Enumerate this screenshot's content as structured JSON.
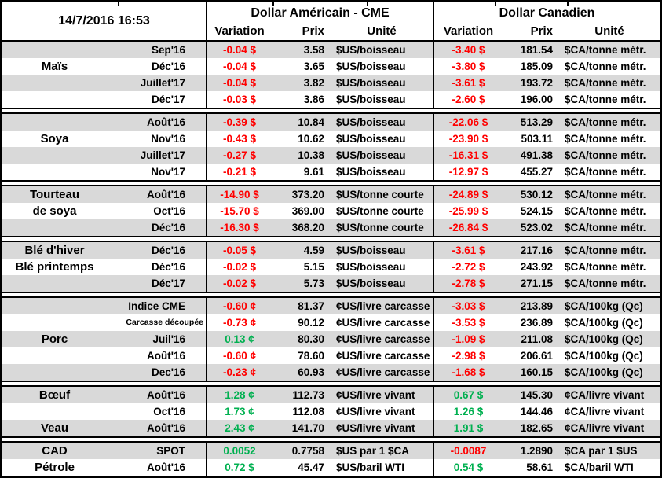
{
  "header": {
    "timestamp": "14/7/2016 16:53",
    "group_us": "Dollar Américain - CME",
    "group_ca": "Dollar Canadien",
    "columns": {
      "variation": "Variation",
      "prix": "Prix",
      "unite": "Unité"
    }
  },
  "colors": {
    "neg": "#FF0000",
    "pos": "#00B050",
    "row_stripe": "#D9D9D9"
  },
  "sections": [
    {
      "id": "mais",
      "rows": [
        {
          "name": "",
          "month": "Sep'16",
          "var_us": "-0.04 $",
          "dir_us": "neg",
          "prix_us": "3.58",
          "unit_us": "$US/boisseau",
          "var_ca": "-3.40 $",
          "dir_ca": "neg",
          "prix_ca": "181.54",
          "unit_ca": "$CA/tonne métr."
        },
        {
          "name": "Maïs",
          "month": "Déc'16",
          "var_us": "-0.04 $",
          "dir_us": "neg",
          "prix_us": "3.65",
          "unit_us": "$US/boisseau",
          "var_ca": "-3.80 $",
          "dir_ca": "neg",
          "prix_ca": "185.09",
          "unit_ca": "$CA/tonne métr."
        },
        {
          "name": "",
          "month": "Juillet'17",
          "var_us": "-0.04 $",
          "dir_us": "neg",
          "prix_us": "3.82",
          "unit_us": "$US/boisseau",
          "var_ca": "-3.61 $",
          "dir_ca": "neg",
          "prix_ca": "193.72",
          "unit_ca": "$CA/tonne métr."
        },
        {
          "name": "",
          "month": "Déc'17",
          "var_us": "-0.03 $",
          "dir_us": "neg",
          "prix_us": "3.86",
          "unit_us": "$US/boisseau",
          "var_ca": "-2.60 $",
          "dir_ca": "neg",
          "prix_ca": "196.00",
          "unit_ca": "$CA/tonne métr."
        }
      ]
    },
    {
      "id": "soya",
      "rows": [
        {
          "name": "",
          "month": "Août'16",
          "var_us": "-0.39 $",
          "dir_us": "neg",
          "prix_us": "10.84",
          "unit_us": "$US/boisseau",
          "var_ca": "-22.06 $",
          "dir_ca": "neg",
          "prix_ca": "513.29",
          "unit_ca": "$CA/tonne métr."
        },
        {
          "name": "Soya",
          "month": "Nov'16",
          "var_us": "-0.43 $",
          "dir_us": "neg",
          "prix_us": "10.62",
          "unit_us": "$US/boisseau",
          "var_ca": "-23.90 $",
          "dir_ca": "neg",
          "prix_ca": "503.11",
          "unit_ca": "$CA/tonne métr."
        },
        {
          "name": "",
          "month": "Juillet'17",
          "var_us": "-0.27 $",
          "dir_us": "neg",
          "prix_us": "10.38",
          "unit_us": "$US/boisseau",
          "var_ca": "-16.31 $",
          "dir_ca": "neg",
          "prix_ca": "491.38",
          "unit_ca": "$CA/tonne métr."
        },
        {
          "name": "",
          "month": "Nov'17",
          "var_us": "-0.21 $",
          "dir_us": "neg",
          "prix_us": "9.61",
          "unit_us": "$US/boisseau",
          "var_ca": "-12.97 $",
          "dir_ca": "neg",
          "prix_ca": "455.27",
          "unit_ca": "$CA/tonne métr."
        }
      ]
    },
    {
      "id": "tourteau-de-soya",
      "rows": [
        {
          "name": "Tourteau",
          "month": "Août'16",
          "var_us": "-14.90 $",
          "dir_us": "neg",
          "prix_us": "373.20",
          "unit_us": "$US/tonne courte",
          "var_ca": "-24.89 $",
          "dir_ca": "neg",
          "prix_ca": "530.12",
          "unit_ca": "$CA/tonne métr."
        },
        {
          "name": "de soya",
          "month": "Oct'16",
          "var_us": "-15.70 $",
          "dir_us": "neg",
          "prix_us": "369.00",
          "unit_us": "$US/tonne courte",
          "var_ca": "-25.99 $",
          "dir_ca": "neg",
          "prix_ca": "524.15",
          "unit_ca": "$CA/tonne métr."
        },
        {
          "name": "",
          "month": "Déc'16",
          "var_us": "-16.30 $",
          "dir_us": "neg",
          "prix_us": "368.20",
          "unit_us": "$US/tonne courte",
          "var_ca": "-26.84 $",
          "dir_ca": "neg",
          "prix_ca": "523.02",
          "unit_ca": "$CA/tonne métr."
        }
      ]
    },
    {
      "id": "ble",
      "rows": [
        {
          "name": "Blé d'hiver",
          "month": "Déc'16",
          "var_us": "-0.05 $",
          "dir_us": "neg",
          "prix_us": "4.59",
          "unit_us": "$US/boisseau",
          "var_ca": "-3.61 $",
          "dir_ca": "neg",
          "prix_ca": "217.16",
          "unit_ca": "$CA/tonne métr."
        },
        {
          "name": "Blé printemps",
          "month": "Déc'16",
          "var_us": "-0.02 $",
          "dir_us": "neg",
          "prix_us": "5.15",
          "unit_us": "$US/boisseau",
          "var_ca": "-2.72 $",
          "dir_ca": "neg",
          "prix_ca": "243.92",
          "unit_ca": "$CA/tonne métr."
        },
        {
          "name": "",
          "month": "Déc'17",
          "var_us": "-0.02 $",
          "dir_us": "neg",
          "prix_us": "5.73",
          "unit_us": "$US/boisseau",
          "var_ca": "-2.78 $",
          "dir_ca": "neg",
          "prix_ca": "271.15",
          "unit_ca": "$CA/tonne métr."
        }
      ]
    },
    {
      "id": "porc",
      "rows": [
        {
          "name": "",
          "month": "Indice CME",
          "var_us": "-0.60 ¢",
          "dir_us": "neg",
          "prix_us": "81.37",
          "unit_us": "¢US/livre carcasse",
          "var_ca": "-3.03 $",
          "dir_ca": "neg",
          "prix_ca": "213.89",
          "unit_ca": "$CA/100kg (Qc)"
        },
        {
          "name": "",
          "month": "Carcasse découpée",
          "month_small": true,
          "var_us": "-0.73 ¢",
          "dir_us": "neg",
          "prix_us": "90.12",
          "unit_us": "¢US/livre carcasse",
          "var_ca": "-3.53 $",
          "dir_ca": "neg",
          "prix_ca": "236.89",
          "unit_ca": "$CA/100kg (Qc)"
        },
        {
          "name": "Porc",
          "month": "Juil'16",
          "var_us": "0.13 ¢",
          "dir_us": "pos",
          "prix_us": "80.30",
          "unit_us": "¢US/livre carcasse",
          "var_ca": "-1.09 $",
          "dir_ca": "neg",
          "prix_ca": "211.08",
          "unit_ca": "$CA/100kg (Qc)"
        },
        {
          "name": "",
          "month": "Août'16",
          "var_us": "-0.60 ¢",
          "dir_us": "neg",
          "prix_us": "78.60",
          "unit_us": "¢US/livre carcasse",
          "var_ca": "-2.98 $",
          "dir_ca": "neg",
          "prix_ca": "206.61",
          "unit_ca": "$CA/100kg (Qc)"
        },
        {
          "name": "",
          "month": "Dec'16",
          "var_us": "-0.23 ¢",
          "dir_us": "neg",
          "prix_us": "60.93",
          "unit_us": "¢US/livre carcasse",
          "var_ca": "-1.68 $",
          "dir_ca": "neg",
          "prix_ca": "160.15",
          "unit_ca": "$CA/100kg (Qc)"
        }
      ]
    },
    {
      "id": "boeuf-veau",
      "rows": [
        {
          "name": "Bœuf",
          "month": "Août'16",
          "var_us": "1.28 ¢",
          "dir_us": "pos",
          "prix_us": "112.73",
          "unit_us": "¢US/livre vivant",
          "var_ca": "0.67 $",
          "dir_ca": "pos",
          "prix_ca": "145.30",
          "unit_ca": "¢CA/livre vivant"
        },
        {
          "name": "",
          "month": "Oct'16",
          "var_us": "1.73 ¢",
          "dir_us": "pos",
          "prix_us": "112.08",
          "unit_us": "¢US/livre vivant",
          "var_ca": "1.26 $",
          "dir_ca": "pos",
          "prix_ca": "144.46",
          "unit_ca": "¢CA/livre vivant"
        },
        {
          "name": "Veau",
          "month": "Août'16",
          "var_us": "2.43 ¢",
          "dir_us": "pos",
          "prix_us": "141.70",
          "unit_us": "¢US/livre vivant",
          "var_ca": "1.91 $",
          "dir_ca": "pos",
          "prix_ca": "182.65",
          "unit_ca": "¢CA/livre vivant"
        }
      ]
    },
    {
      "id": "cad-petrole",
      "rows": [
        {
          "name": "CAD",
          "month": "SPOT",
          "var_us": "0.0052",
          "dir_us": "pos",
          "prix_us": "0.7758",
          "unit_us": "$US par 1 $CA",
          "var_ca": "-0.0087",
          "dir_ca": "neg",
          "prix_ca": "1.2890",
          "unit_ca": "$CA par 1 $US"
        },
        {
          "name": "Pétrole",
          "month": "Août'16",
          "var_us": "0.72 $",
          "dir_us": "pos",
          "prix_us": "45.47",
          "unit_us": "$US/baril WTI",
          "var_ca": "0.54 $",
          "dir_ca": "pos",
          "prix_ca": "58.61",
          "unit_ca": "$CA/baril WTI"
        }
      ]
    }
  ]
}
